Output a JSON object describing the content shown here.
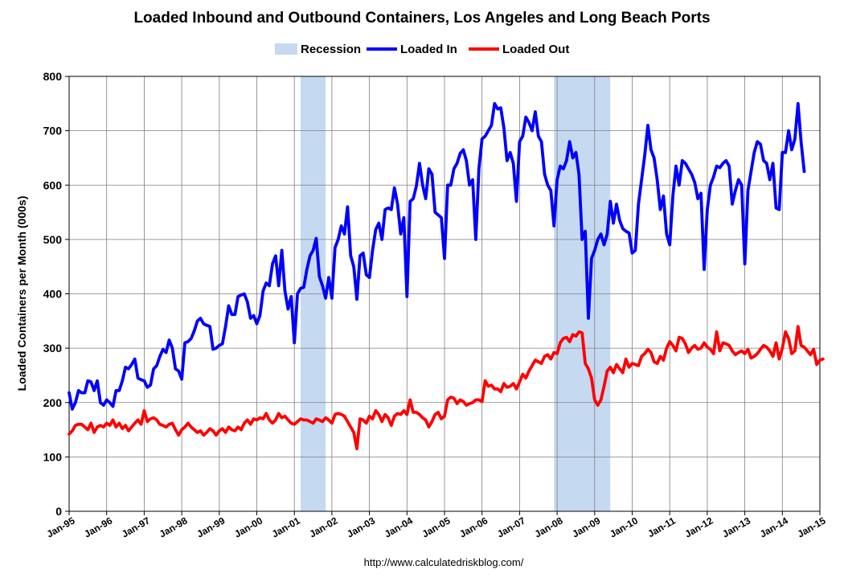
{
  "chart_data": {
    "type": "line",
    "title": "Loaded Inbound and Outbound Containers, Los Angeles and Long Beach Ports",
    "ylabel": "Loaded Containers per Month (000s)",
    "xlabel": "",
    "source": "http://www.calculatedriskblog.com/",
    "ylim": [
      0,
      800
    ],
    "yticks": [
      "0",
      "100",
      "200",
      "300",
      "400",
      "500",
      "600",
      "700",
      "800"
    ],
    "xticks": [
      "Jan-95",
      "Jan-96",
      "Jan-97",
      "Jan-98",
      "Jan-99",
      "Jan-00",
      "Jan-01",
      "Jan-02",
      "Jan-03",
      "Jan-04",
      "Jan-05",
      "Jan-06",
      "Jan-07",
      "Jan-08",
      "Jan-09",
      "Jan-10",
      "Jan-11",
      "Jan-12",
      "Jan-13",
      "Jan-14",
      "Jan-15"
    ],
    "xrange": [
      "1995-01",
      "2015-01"
    ],
    "grid": true,
    "legend_position": "top-center",
    "recessions": [
      {
        "start": "2001-03",
        "end": "2001-11"
      },
      {
        "start": "2007-12",
        "end": "2009-06"
      }
    ],
    "legend": [
      {
        "name": "Recession",
        "color": "#c5d9f1",
        "kind": "box"
      },
      {
        "name": "Loaded In",
        "color": "#0000ff",
        "kind": "line"
      },
      {
        "name": "Loaded Out",
        "color": "#ff0000",
        "kind": "line"
      }
    ],
    "series": [
      {
        "name": "Loaded In",
        "color": "#0000ff",
        "start": "1995-01",
        "values": [
          218,
          188,
          200,
          222,
          218,
          218,
          240,
          238,
          222,
          240,
          200,
          195,
          205,
          200,
          193,
          222,
          222,
          240,
          265,
          262,
          270,
          280,
          245,
          242,
          240,
          228,
          232,
          262,
          268,
          285,
          298,
          292,
          315,
          300,
          262,
          258,
          243,
          310,
          312,
          318,
          332,
          350,
          355,
          345,
          342,
          340,
          298,
          300,
          305,
          308,
          340,
          378,
          362,
          362,
          395,
          398,
          400,
          385,
          355,
          360,
          345,
          360,
          405,
          420,
          415,
          455,
          470,
          415,
          480,
          405,
          372,
          395,
          310,
          400,
          410,
          412,
          445,
          470,
          480,
          502,
          432,
          415,
          392,
          430,
          392,
          485,
          500,
          525,
          510,
          560,
          470,
          450,
          390,
          470,
          475,
          435,
          430,
          480,
          518,
          530,
          500,
          555,
          558,
          555,
          595,
          565,
          510,
          540,
          395,
          570,
          575,
          598,
          640,
          600,
          575,
          630,
          620,
          550,
          545,
          540,
          465,
          600,
          600,
          630,
          640,
          658,
          665,
          645,
          600,
          610,
          500,
          630,
          685,
          690,
          700,
          710,
          750,
          740,
          742,
          705,
          645,
          660,
          640,
          570,
          680,
          690,
          725,
          715,
          700,
          735,
          690,
          680,
          620,
          600,
          590,
          525,
          610,
          635,
          630,
          645,
          680,
          650,
          660,
          620,
          500,
          515,
          355,
          465,
          480,
          500,
          510,
          490,
          510,
          570,
          530,
          565,
          535,
          520,
          515,
          512,
          475,
          480,
          565,
          610,
          655,
          710,
          665,
          650,
          610,
          555,
          580,
          510,
          490,
          580,
          635,
          600,
          645,
          640,
          630,
          620,
          605,
          575,
          585,
          445,
          555,
          600,
          615,
          635,
          632,
          640,
          645,
          635,
          565,
          590,
          610,
          600,
          455,
          590,
          625,
          660,
          680,
          675,
          645,
          640,
          610,
          640,
          558,
          555,
          660,
          660,
          700,
          665,
          685,
          750,
          680,
          625
        ]
      },
      {
        "name": "Loaded Out",
        "color": "#ff0000",
        "start": "1995-01",
        "values": [
          142,
          148,
          158,
          160,
          160,
          155,
          150,
          162,
          145,
          155,
          158,
          155,
          162,
          158,
          168,
          155,
          162,
          152,
          158,
          148,
          155,
          162,
          168,
          160,
          185,
          165,
          170,
          172,
          168,
          160,
          158,
          155,
          160,
          162,
          150,
          140,
          150,
          155,
          162,
          155,
          150,
          145,
          148,
          140,
          145,
          152,
          148,
          140,
          148,
          152,
          145,
          155,
          150,
          148,
          155,
          150,
          162,
          168,
          160,
          170,
          168,
          172,
          170,
          180,
          168,
          162,
          168,
          180,
          172,
          175,
          168,
          162,
          160,
          165,
          170,
          168,
          168,
          165,
          162,
          170,
          168,
          165,
          172,
          168,
          162,
          178,
          180,
          178,
          175,
          165,
          155,
          145,
          115,
          170,
          168,
          162,
          175,
          170,
          185,
          178,
          165,
          178,
          172,
          158,
          175,
          180,
          178,
          185,
          178,
          205,
          182,
          182,
          178,
          172,
          168,
          155,
          165,
          178,
          182,
          170,
          175,
          205,
          210,
          208,
          198,
          205,
          202,
          195,
          198,
          200,
          205,
          205,
          202,
          240,
          230,
          232,
          225,
          225,
          220,
          235,
          228,
          230,
          235,
          225,
          238,
          252,
          245,
          258,
          268,
          278,
          275,
          272,
          285,
          288,
          280,
          292,
          290,
          310,
          318,
          320,
          312,
          325,
          322,
          330,
          328,
          272,
          262,
          245,
          205,
          195,
          205,
          230,
          258,
          265,
          255,
          270,
          262,
          255,
          280,
          265,
          272,
          270,
          268,
          285,
          290,
          298,
          292,
          275,
          272,
          285,
          278,
          300,
          312,
          305,
          295,
          320,
          318,
          308,
          292,
          300,
          305,
          298,
          300,
          310,
          302,
          298,
          290,
          330,
          295,
          310,
          308,
          305,
          295,
          288,
          292,
          295,
          290,
          298,
          282,
          285,
          290,
          298,
          305,
          302,
          295,
          285,
          310,
          280,
          300,
          330,
          318,
          290,
          295,
          340,
          305,
          302,
          295,
          288,
          298,
          270,
          278,
          280
        ]
      }
    ]
  }
}
